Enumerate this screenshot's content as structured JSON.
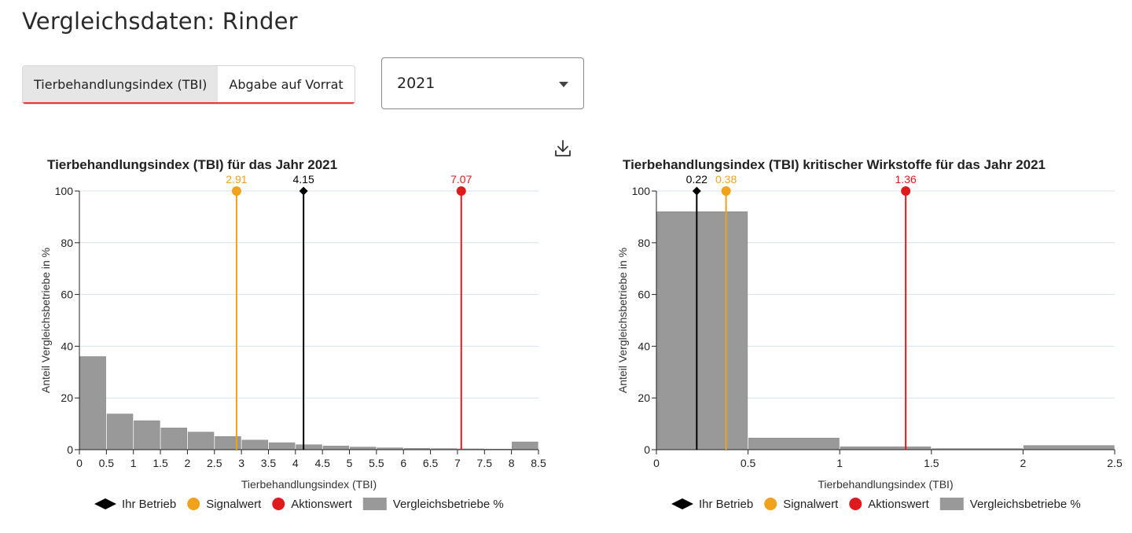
{
  "page": {
    "title": "Vergleichsdaten: Rinder",
    "tabs": [
      {
        "label": "Tierbehandlungsindex (TBI)",
        "active": true
      },
      {
        "label": "Abgabe auf Vorrat",
        "active": false
      }
    ],
    "year_select": {
      "value": "2021"
    },
    "download_icon": "download-icon"
  },
  "colors": {
    "bar": "#999999",
    "grid": "#d6e2ee",
    "own": "#000000",
    "signal": "#f0a21c",
    "action": "#df1a1e"
  },
  "legend": [
    {
      "label": "Ihr Betrieb",
      "shape": "diamond",
      "color": "#000000"
    },
    {
      "label": "Signalwert",
      "shape": "circle",
      "color": "#f0a21c"
    },
    {
      "label": "Aktionswert",
      "shape": "circle",
      "color": "#df1a1e"
    },
    {
      "label": "Vergleichsbetriebe %",
      "shape": "rect",
      "color": "#999999"
    }
  ],
  "chart_data": [
    {
      "type": "bar",
      "title": "Tierbehandlungsindex (TBI) für das Jahr 2021",
      "xlabel": "Tierbehandlungsindex (TBI)",
      "ylabel": "Anteil Vergleichsbetriebe in %",
      "xlim": [
        0,
        8.5
      ],
      "ylim": [
        0,
        100
      ],
      "x_ticks": [
        "0",
        "0.5",
        "1",
        "1.5",
        "2",
        "2.5",
        "3",
        "3.5",
        "4",
        "4.5",
        "5",
        "5.5",
        "6",
        "6.5",
        "7",
        "7.5",
        "8",
        "8.5"
      ],
      "y_ticks": [
        "0",
        "20",
        "40",
        "60",
        "80",
        "100"
      ],
      "grid": true,
      "legend_position": "bottom",
      "bins": [
        {
          "from": 0,
          "to": 0.5,
          "value": 36
        },
        {
          "from": 0.5,
          "to": 1,
          "value": 13.8
        },
        {
          "from": 1,
          "to": 1.5,
          "value": 11.2
        },
        {
          "from": 1.5,
          "to": 2,
          "value": 8.4
        },
        {
          "from": 2,
          "to": 2.5,
          "value": 6.8
        },
        {
          "from": 2.5,
          "to": 3,
          "value": 5.1
        },
        {
          "from": 3,
          "to": 3.5,
          "value": 3.7
        },
        {
          "from": 3.5,
          "to": 4,
          "value": 2.7
        },
        {
          "from": 4,
          "to": 4.5,
          "value": 1.9
        },
        {
          "from": 4.5,
          "to": 5,
          "value": 1.4
        },
        {
          "from": 5,
          "to": 5.5,
          "value": 1.0
        },
        {
          "from": 5.5,
          "to": 6,
          "value": 0.7
        },
        {
          "from": 6,
          "to": 6.5,
          "value": 0.5
        },
        {
          "from": 6.5,
          "to": 7,
          "value": 0.4
        },
        {
          "from": 7,
          "to": 7.5,
          "value": 0.3
        },
        {
          "from": 7.5,
          "to": 8,
          "value": 0.2
        },
        {
          "from": 8,
          "to": 8.5,
          "value": 3.0
        }
      ],
      "markers": [
        {
          "role": "own",
          "value": 4.15,
          "label": "4.15",
          "shape": "diamond",
          "color": "#000000"
        },
        {
          "role": "signal",
          "value": 2.91,
          "label": "2.91",
          "shape": "circle",
          "color": "#f0a21c"
        },
        {
          "role": "action",
          "value": 7.07,
          "label": "7.07",
          "shape": "circle",
          "color": "#df1a1e"
        }
      ]
    },
    {
      "type": "bar",
      "title": "Tierbehandlungsindex (TBI) kritischer Wirkstoffe für das Jahr 2021",
      "xlabel": "Tierbehandlungsindex (TBI)",
      "ylabel": "Anteil Vergleichsbetriebe in %",
      "xlim": [
        0,
        2.5
      ],
      "ylim": [
        0,
        100
      ],
      "x_ticks": [
        "0",
        "0.5",
        "1",
        "1.5",
        "2",
        "2.5"
      ],
      "y_ticks": [
        "0",
        "20",
        "40",
        "60",
        "80",
        "100"
      ],
      "grid": true,
      "legend_position": "bottom",
      "bins": [
        {
          "from": 0,
          "to": 0.5,
          "value": 92
        },
        {
          "from": 0.5,
          "to": 1,
          "value": 4.5
        },
        {
          "from": 1,
          "to": 1.5,
          "value": 1.1
        },
        {
          "from": 1.5,
          "to": 2,
          "value": 0.4
        },
        {
          "from": 2,
          "to": 2.5,
          "value": 1.6
        }
      ],
      "markers": [
        {
          "role": "own",
          "value": 0.22,
          "label": "0.22",
          "shape": "diamond",
          "color": "#000000"
        },
        {
          "role": "signal",
          "value": 0.38,
          "label": "0.38",
          "shape": "circle",
          "color": "#f0a21c"
        },
        {
          "role": "action",
          "value": 1.36,
          "label": "1.36",
          "shape": "circle",
          "color": "#df1a1e"
        }
      ]
    }
  ]
}
